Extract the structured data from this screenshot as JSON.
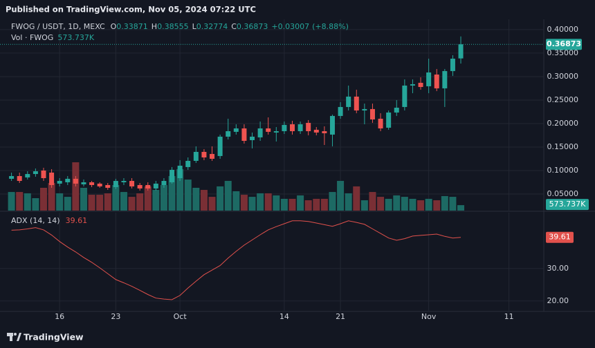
{
  "chart_data": {
    "type": "candlestick",
    "published": "Published on TradingView.com, Nov 05, 2024 07:22 UTC",
    "footer": "TradingView",
    "ohlc_letters": [
      "O",
      "H",
      "L",
      "C"
    ],
    "change": {
      "value": 0.03007,
      "label": "+0.03007"
    },
    "change_pct": {
      "value": 8.88,
      "label": "(+8.88%)"
    },
    "grid": true,
    "x": [
      "2024-09-10",
      "2024-09-11",
      "2024-09-12",
      "2024-09-13",
      "2024-09-14",
      "2024-09-15",
      "2024-09-16",
      "2024-09-17",
      "2024-09-18",
      "2024-09-19",
      "2024-09-20",
      "2024-09-21",
      "2024-09-22",
      "2024-09-23",
      "2024-09-24",
      "2024-09-25",
      "2024-09-26",
      "2024-09-27",
      "2024-09-28",
      "2024-09-29",
      "2024-09-30",
      "2024-10-01",
      "2024-10-02",
      "2024-10-03",
      "2024-10-04",
      "2024-10-05",
      "2024-10-06",
      "2024-10-07",
      "2024-10-08",
      "2024-10-09",
      "2024-10-10",
      "2024-10-11",
      "2024-10-12",
      "2024-10-13",
      "2024-10-14",
      "2024-10-15",
      "2024-10-16",
      "2024-10-17",
      "2024-10-18",
      "2024-10-19",
      "2024-10-20",
      "2024-10-21",
      "2024-10-22",
      "2024-10-23",
      "2024-10-24",
      "2024-10-25",
      "2024-10-26",
      "2024-10-27",
      "2024-10-28",
      "2024-10-29",
      "2024-10-30",
      "2024-10-31",
      "2024-11-01",
      "2024-11-02",
      "2024-11-03",
      "2024-11-04",
      "2024-11-05"
    ],
    "xlim": [
      "2024-09-09",
      "2024-11-15"
    ],
    "xticks": [
      {
        "value": "2024-09-16",
        "label": "16"
      },
      {
        "value": "2024-09-23",
        "label": "23"
      },
      {
        "value": "2024-10-01",
        "label": "Oct"
      },
      {
        "value": "2024-10-14",
        "label": "14"
      },
      {
        "value": "2024-10-21",
        "label": "21"
      },
      {
        "value": "2024-11-01",
        "label": "Nov"
      },
      {
        "value": "2024-11-11",
        "label": "11"
      }
    ],
    "ylim": [
      0.0147,
      0.419
    ],
    "yticks": [
      {
        "value": 0.05,
        "label": "0.05000"
      },
      {
        "value": 0.1,
        "label": "0.10000"
      },
      {
        "value": 0.15,
        "label": "0.15000"
      },
      {
        "value": 0.2,
        "label": "0.20000"
      },
      {
        "value": 0.25,
        "label": "0.25000"
      },
      {
        "value": 0.3,
        "label": "0.30000"
      },
      {
        "value": 0.35,
        "label": "0.35000"
      },
      {
        "value": 0.4,
        "label": "0.40000"
      }
    ],
    "vlim": [
      0,
      20000000
    ],
    "y2lim": [
      17,
      47.2
    ],
    "y2ticks": [
      {
        "value": 20,
        "label": "20.00"
      },
      {
        "value": 30,
        "label": "30.00"
      }
    ],
    "series": [
      {
        "name": "FWOG / USDT, 1D, MEXC",
        "up_color": "#26a69a",
        "down_color": "#ef5350",
        "open": [
          0.0824,
          0.0882,
          0.0853,
          0.0926,
          0.1,
          0.0956,
          0.0721,
          0.075,
          0.0824,
          0.0706,
          0.075,
          0.0721,
          0.0691,
          0.0647,
          0.075,
          0.0779,
          0.0691,
          0.0691,
          0.0618,
          0.0691,
          0.075,
          0.0838,
          0.1074,
          0.1206,
          0.1397,
          0.1353,
          0.1309,
          0.1721,
          0.1824,
          0.1897,
          0.1647,
          0.1706,
          0.1897,
          0.1809,
          0.1838,
          0.1985,
          0.1838,
          0.2015,
          0.1868,
          0.1838,
          0.1765,
          0.2162,
          0.2353,
          0.2574,
          0.2279,
          0.2309,
          0.2103,
          0.1912,
          0.2235,
          0.2353,
          0.2809,
          0.2868,
          0.2794,
          0.3044,
          0.275,
          0.3118,
          0.33871
        ],
        "high": [
          0.0956,
          0.0956,
          0.0985,
          0.1044,
          0.1059,
          0.1029,
          0.0838,
          0.0882,
          0.0882,
          0.0809,
          0.0779,
          0.075,
          0.0735,
          0.0824,
          0.0838,
          0.0838,
          0.0735,
          0.075,
          0.0779,
          0.0838,
          0.1074,
          0.1221,
          0.1279,
          0.1515,
          0.1456,
          0.1515,
          0.1765,
          0.2103,
          0.1985,
          0.1985,
          0.1809,
          0.2044,
          0.2132,
          0.1926,
          0.2044,
          0.2059,
          0.2044,
          0.2074,
          0.1926,
          0.1941,
          0.2191,
          0.2456,
          0.2809,
          0.2721,
          0.2426,
          0.2426,
          0.2221,
          0.2279,
          0.25,
          0.2941,
          0.2941,
          0.2985,
          0.3382,
          0.3162,
          0.3162,
          0.3456,
          0.38555
        ],
        "low": [
          0.0779,
          0.0735,
          0.0809,
          0.0868,
          0.0779,
          0.0632,
          0.0662,
          0.0691,
          0.0662,
          0.0662,
          0.0647,
          0.0632,
          0.0588,
          0.0603,
          0.0691,
          0.0618,
          0.0574,
          0.0574,
          0.0574,
          0.0632,
          0.0721,
          0.0779,
          0.1015,
          0.1162,
          0.1221,
          0.1206,
          0.125,
          0.1662,
          0.1765,
          0.1574,
          0.1471,
          0.1632,
          0.1765,
          0.1618,
          0.1779,
          0.1765,
          0.1779,
          0.175,
          0.175,
          0.1544,
          0.1515,
          0.2103,
          0.2279,
          0.2221,
          0.1985,
          0.2015,
          0.1838,
          0.1868,
          0.2162,
          0.2279,
          0.2647,
          0.2721,
          0.2647,
          0.2691,
          0.2353,
          0.3015,
          0.32774
        ],
        "close": [
          0.0882,
          0.0779,
          0.0926,
          0.0985,
          0.0838,
          0.0691,
          0.0779,
          0.0824,
          0.0721,
          0.075,
          0.0691,
          0.0662,
          0.0632,
          0.0779,
          0.0779,
          0.0662,
          0.0618,
          0.0618,
          0.0721,
          0.0779,
          0.1015,
          0.1103,
          0.1206,
          0.1397,
          0.1279,
          0.125,
          0.1721,
          0.1838,
          0.1897,
          0.1632,
          0.1721,
          0.1897,
          0.1824,
          0.1838,
          0.1971,
          0.1838,
          0.1985,
          0.1838,
          0.1809,
          0.1794,
          0.2162,
          0.2353,
          0.2574,
          0.2279,
          0.2309,
          0.2088,
          0.1897,
          0.2235,
          0.2338,
          0.2809,
          0.2838,
          0.2779,
          0.3088,
          0.275,
          0.3118,
          0.3382,
          0.36873
        ]
      },
      {
        "name": "Vol · FWOG",
        "up_color": "#1d6a64",
        "down_color": "#7a2f35",
        "values": [
          1960000,
          1960000,
          1820000,
          1310000,
          2400000,
          2910000,
          1820000,
          1450000,
          5090000,
          2400000,
          1670000,
          1670000,
          1820000,
          2690000,
          1960000,
          1450000,
          1820000,
          2550000,
          2180000,
          2690000,
          3640000,
          4360000,
          3270000,
          2400000,
          2180000,
          1450000,
          2550000,
          3130000,
          2040000,
          1670000,
          1450000,
          1820000,
          1820000,
          1600000,
          1240000,
          1240000,
          1600000,
          1090000,
          1240000,
          1240000,
          1960000,
          3130000,
          1820000,
          2550000,
          1090000,
          1960000,
          1450000,
          1240000,
          1600000,
          1450000,
          1240000,
          1090000,
          1240000,
          1090000,
          1530000,
          1450000,
          573737
        ],
        "value_labels": [
          null,
          null,
          null,
          null,
          null,
          null,
          null,
          null,
          null,
          null,
          null,
          null,
          null,
          null,
          null,
          null,
          null,
          null,
          null,
          null,
          null,
          null,
          null,
          null,
          null,
          null,
          null,
          null,
          null,
          null,
          null,
          null,
          null,
          null,
          null,
          null,
          null,
          null,
          null,
          null,
          null,
          null,
          null,
          null,
          null,
          null,
          null,
          null,
          null,
          null,
          null,
          null,
          null,
          null,
          null,
          null,
          "573.737K"
        ]
      },
      {
        "name": "ADX (14, 14)",
        "axis": "y2",
        "color": "#e2514c",
        "values": [
          41.8,
          41.9,
          42.2,
          42.6,
          41.9,
          40.3,
          38.3,
          36.6,
          35.1,
          33.4,
          31.9,
          30.2,
          28.4,
          26.6,
          25.6,
          24.5,
          23.3,
          22,
          20.9,
          20.6,
          20.4,
          21.7,
          24,
          26.1,
          28.1,
          29.5,
          30.9,
          33.2,
          35.3,
          37.2,
          38.8,
          40.4,
          41.9,
          42.9,
          43.8,
          44.7,
          44.7,
          44.5,
          44,
          43.5,
          43,
          43.8,
          44.7,
          44.2,
          43.6,
          42.2,
          40.8,
          39.4,
          38.7,
          39.2,
          40,
          40.2,
          40.4,
          40.6,
          39.9,
          39.4,
          39.61
        ]
      }
    ]
  }
}
